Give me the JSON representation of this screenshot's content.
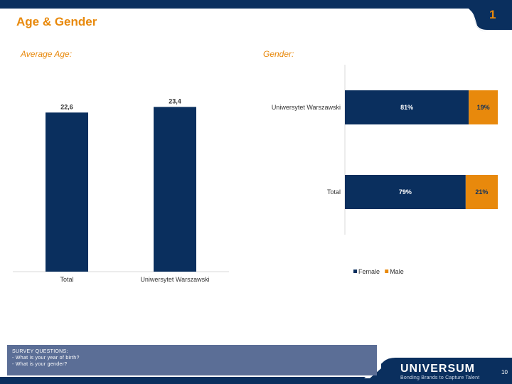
{
  "header": {
    "title": "Age & Gender",
    "slide_number": "1"
  },
  "colors": {
    "navy": "#0a2f5e",
    "orange": "#e8890c",
    "survey_box": "#5b6e96"
  },
  "chart_data": [
    {
      "type": "bar",
      "title": "Average Age:",
      "categories": [
        "Total",
        "Uniwersytet Warszawski"
      ],
      "values": [
        22.6,
        23.4
      ],
      "value_labels": [
        "22,6",
        "23,4"
      ],
      "ylim": [
        0,
        30
      ],
      "grid": false,
      "color": "#0a2f5e"
    },
    {
      "type": "bar",
      "orientation": "horizontal",
      "stacked": true,
      "title": "Gender:",
      "categories": [
        "Uniwersytet Warszawski",
        "Total"
      ],
      "series": [
        {
          "name": "Female",
          "values": [
            81,
            79
          ],
          "labels": [
            "81%",
            "79%"
          ],
          "color": "#0a2f5e"
        },
        {
          "name": "Male",
          "values": [
            19,
            21
          ],
          "labels": [
            "19%",
            "21%"
          ],
          "color": "#e8890c"
        }
      ],
      "xlim": [
        0,
        100
      ],
      "legend": "bottom",
      "grid": false
    }
  ],
  "survey": {
    "title": "SURVEY QUESTIONS:",
    "q1": "- What is your year of birth?",
    "q2": "- What is your gender?"
  },
  "footer": {
    "logo": "UNIVERSUM",
    "tagline": "Bonding Brands to Capture Talent",
    "page": "10"
  }
}
